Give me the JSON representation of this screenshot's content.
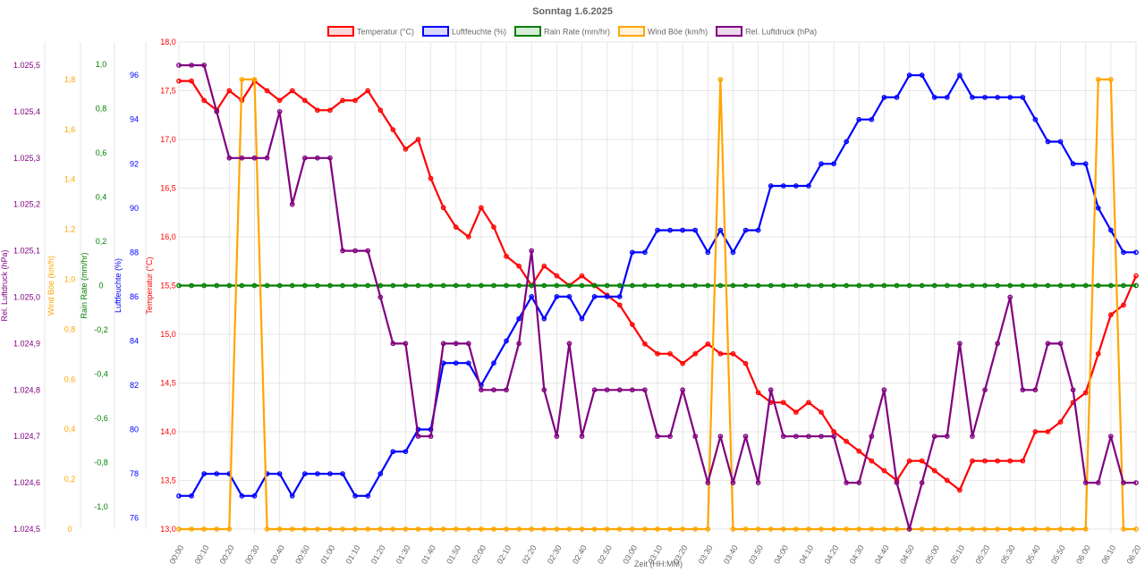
{
  "chart_data": {
    "type": "line",
    "title": "Sonntag 1.6.2025",
    "xlabel": "Zeit (HH:MM)",
    "x": [
      "00:00",
      "00:05",
      "00:10",
      "00:15",
      "00:20",
      "00:25",
      "00:30",
      "00:35",
      "00:40",
      "00:45",
      "00:50",
      "00:55",
      "01:00",
      "01:05",
      "01:10",
      "01:15",
      "01:20",
      "01:25",
      "01:30",
      "01:35",
      "01:40",
      "01:45",
      "01:50",
      "01:55",
      "02:00",
      "02:05",
      "02:10",
      "02:15",
      "02:20",
      "02:25",
      "02:30",
      "02:35",
      "02:40",
      "02:45",
      "02:50",
      "02:55",
      "03:00",
      "03:05",
      "03:10",
      "03:15",
      "03:20",
      "03:25",
      "03:30",
      "03:35",
      "03:40",
      "03:45",
      "03:50",
      "03:55",
      "04:00",
      "04:05",
      "04:10",
      "04:15",
      "04:20",
      "04:25",
      "04:30",
      "04:35",
      "04:40",
      "04:45",
      "04:50",
      "04:55",
      "05:00",
      "05:05",
      "05:10",
      "05:15",
      "05:20",
      "05:25",
      "05:30",
      "05:35",
      "05:40",
      "05:45",
      "05:50",
      "05:55",
      "06:00",
      "06:05",
      "06:10",
      "06:15",
      "06:20"
    ],
    "x_tick_labels": [
      "00:00",
      "00:10",
      "00:20",
      "00:30",
      "00:40",
      "00:50",
      "01:00",
      "01:10",
      "01:20",
      "01:30",
      "01:40",
      "01:50",
      "02:00",
      "02:10",
      "02:20",
      "02:30",
      "02:40",
      "02:50",
      "03:00",
      "03:10",
      "03:20",
      "03:30",
      "03:40",
      "03:50",
      "04:00",
      "04:10",
      "04:20",
      "04:30",
      "04:40",
      "04:50",
      "05:00",
      "05:10",
      "05:20",
      "05:30",
      "05:40",
      "05:50",
      "06:00",
      "06:10",
      "06:20"
    ],
    "grid": true,
    "legend_position": "top-center",
    "axes": [
      {
        "id": "pressure",
        "label": "Rel. Luftdruck (hPa)",
        "min": 1024.5,
        "max": 1025.55,
        "ticks": [
          1025.5,
          1025.4,
          1025.3,
          1025.2,
          1025.1,
          1025.0,
          1024.9,
          1024.8,
          1024.7,
          1024.6,
          1024.5
        ],
        "tick_labels": [
          "1.025,5",
          "1.025,4",
          "1.025,3",
          "1.025,2",
          "1.025,1",
          "1.025,0",
          "1.024,9",
          "1.024,8",
          "1.024,7",
          "1.024,6",
          "1.024,5"
        ],
        "color": "#800080"
      },
      {
        "id": "wind",
        "label": "Wind Böe (km/h)",
        "min": 0,
        "max": 1.95,
        "ticks": [
          1.8,
          1.6,
          1.4,
          1.2,
          1.0,
          0.8,
          0.6,
          0.4,
          0.2,
          0
        ],
        "tick_labels": [
          "1,8",
          "1,6",
          "1,4",
          "1,2",
          "1,0",
          "0,8",
          "0,6",
          "0,4",
          "0,2",
          "0"
        ],
        "color": "#FFA500"
      },
      {
        "id": "rain",
        "label": "Rain Rate (mm/hr)",
        "min": -1.1,
        "max": 1.1,
        "ticks": [
          1.0,
          0.8,
          0.6,
          0.4,
          0.2,
          0,
          -0.2,
          -0.4,
          -0.6,
          -0.8,
          -1.0
        ],
        "tick_labels": [
          "1,0",
          "0,8",
          "0,6",
          "0,4",
          "0,2",
          "0",
          "-0,2",
          "-0,4",
          "-0,6",
          "-0,8",
          "-1,0"
        ],
        "color": "#008000"
      },
      {
        "id": "humidity",
        "label": "Luftfeuchte (%)",
        "min": 75.5,
        "max": 97.5,
        "ticks": [
          96,
          94,
          92,
          90,
          88,
          86,
          84,
          82,
          80,
          78,
          76
        ],
        "tick_labels": [
          "96",
          "94",
          "92",
          "90",
          "88",
          "86",
          "84",
          "82",
          "80",
          "78",
          "76"
        ],
        "color": "#0000FF"
      },
      {
        "id": "temp",
        "label": "Temperatur (°C)",
        "min": 13.0,
        "max": 18.0,
        "ticks": [
          18.0,
          17.5,
          17.0,
          16.5,
          16.0,
          15.5,
          15.0,
          14.5,
          14.0,
          13.5,
          13.0
        ],
        "tick_labels": [
          "18,0",
          "17,5",
          "17,0",
          "16,5",
          "16,0",
          "15,5",
          "15,0",
          "14,5",
          "14,0",
          "13,5",
          "13,0"
        ],
        "color": "#FF0000"
      }
    ],
    "series": [
      {
        "name": "Temperatur (°C)",
        "axis": "temp",
        "color": "#FF0000",
        "fill": "rgba(255,0,0,0.15)",
        "values": [
          17.6,
          17.6,
          17.4,
          17.3,
          17.5,
          17.4,
          17.6,
          17.5,
          17.4,
          17.5,
          17.4,
          17.3,
          17.3,
          17.4,
          17.4,
          17.5,
          17.3,
          17.1,
          16.9,
          17.0,
          16.6,
          16.3,
          16.1,
          16.0,
          16.3,
          16.1,
          15.8,
          15.7,
          15.5,
          15.7,
          15.6,
          15.5,
          15.6,
          15.5,
          15.4,
          15.3,
          15.1,
          14.9,
          14.8,
          14.8,
          14.7,
          14.8,
          14.9,
          14.8,
          14.8,
          14.7,
          14.4,
          14.3,
          14.3,
          14.2,
          14.3,
          14.2,
          14.0,
          13.9,
          13.8,
          13.7,
          13.6,
          13.5,
          13.7,
          13.7,
          13.6,
          13.5,
          13.4,
          13.7,
          13.7,
          13.7,
          13.7,
          13.7,
          14.0,
          14.0,
          14.1,
          14.3,
          14.4,
          14.8,
          15.2,
          15.3,
          15.6
        ]
      },
      {
        "name": "Luftfeuchte (%)",
        "axis": "humidity",
        "color": "#0000FF",
        "fill": "rgba(0,0,255,0.15)",
        "values": [
          77,
          77,
          78,
          78,
          78,
          77,
          77,
          78,
          78,
          77,
          78,
          78,
          78,
          78,
          77,
          77,
          78,
          79,
          79,
          80,
          80,
          83,
          83,
          83,
          82,
          83,
          84,
          85,
          86,
          85,
          86,
          86,
          85,
          86,
          86,
          86,
          88,
          88,
          89,
          89,
          89,
          89,
          88,
          89,
          88,
          89,
          89,
          91,
          91,
          91,
          91,
          92,
          92,
          93,
          94,
          94,
          95,
          95,
          96,
          96,
          95,
          95,
          96,
          95,
          95,
          95,
          95,
          95,
          94,
          93,
          93,
          92,
          92,
          90,
          89,
          88,
          88
        ]
      },
      {
        "name": "Rain Rate (mm/hr)",
        "axis": "rain",
        "color": "#008000",
        "fill": "rgba(0,128,0,0.15)",
        "values": [
          0,
          0,
          0,
          0,
          0,
          0,
          0,
          0,
          0,
          0,
          0,
          0,
          0,
          0,
          0,
          0,
          0,
          0,
          0,
          0,
          0,
          0,
          0,
          0,
          0,
          0,
          0,
          0,
          0,
          0,
          0,
          0,
          0,
          0,
          0,
          0,
          0,
          0,
          0,
          0,
          0,
          0,
          0,
          0,
          0,
          0,
          0,
          0,
          0,
          0,
          0,
          0,
          0,
          0,
          0,
          0,
          0,
          0,
          0,
          0,
          0,
          0,
          0,
          0,
          0,
          0,
          0,
          0,
          0,
          0,
          0,
          0,
          0,
          0,
          0,
          0,
          0
        ]
      },
      {
        "name": "Wind Böe (km/h)",
        "axis": "wind",
        "color": "#FFA500",
        "fill": "rgba(255,165,0,0.15)",
        "values": [
          0,
          0,
          0,
          0,
          0,
          1.8,
          1.8,
          0,
          0,
          0,
          0,
          0,
          0,
          0,
          0,
          0,
          0,
          0,
          0,
          0,
          0,
          0,
          0,
          0,
          0,
          0,
          0,
          0,
          0,
          0,
          0,
          0,
          0,
          0,
          0,
          0,
          0,
          0,
          0,
          0,
          0,
          0,
          0,
          1.8,
          0,
          0,
          0,
          0,
          0,
          0,
          0,
          0,
          0,
          0,
          0,
          0,
          0,
          0,
          0,
          0,
          0,
          0,
          0,
          0,
          0,
          0,
          0,
          0,
          0,
          0,
          0,
          0,
          0,
          1.8,
          1.8,
          0,
          0
        ]
      },
      {
        "name": "Rel. Luftdruck (hPa)",
        "axis": "pressure",
        "color": "#800080",
        "fill": "rgba(128,0,128,0.15)",
        "values": [
          1025.5,
          1025.5,
          1025.5,
          1025.4,
          1025.3,
          1025.3,
          1025.3,
          1025.3,
          1025.4,
          1025.2,
          1025.3,
          1025.3,
          1025.3,
          1025.1,
          1025.1,
          1025.1,
          1025.0,
          1024.9,
          1024.9,
          1024.7,
          1024.7,
          1024.9,
          1024.9,
          1024.9,
          1024.8,
          1024.8,
          1024.8,
          1024.9,
          1025.1,
          1024.8,
          1024.7,
          1024.9,
          1024.7,
          1024.8,
          1024.8,
          1024.8,
          1024.8,
          1024.8,
          1024.7,
          1024.7,
          1024.8,
          1024.7,
          1024.6,
          1024.7,
          1024.6,
          1024.7,
          1024.6,
          1024.8,
          1024.7,
          1024.7,
          1024.7,
          1024.7,
          1024.7,
          1024.6,
          1024.6,
          1024.7,
          1024.8,
          1024.6,
          1024.5,
          1024.6,
          1024.7,
          1024.7,
          1024.9,
          1024.7,
          1024.8,
          1024.9,
          1025.0,
          1024.8,
          1024.8,
          1024.9,
          1024.9,
          1024.8,
          1024.6,
          1024.6,
          1024.7,
          1024.6,
          1024.6
        ]
      }
    ]
  }
}
